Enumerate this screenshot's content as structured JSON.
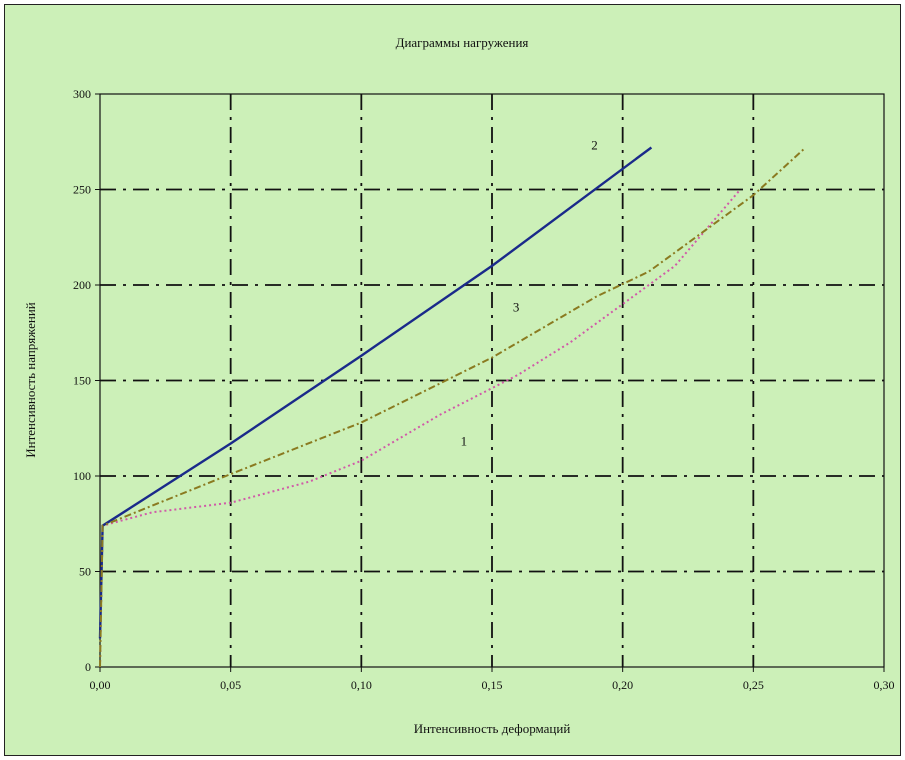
{
  "chart_data": {
    "type": "line",
    "title": "Диаграммы нагружения",
    "xlabel": "Интенсивность деформаций",
    "ylabel": "Интенсивность напряжений",
    "xlim": [
      0,
      0.3
    ],
    "ylim": [
      0,
      300
    ],
    "x_ticks": [
      0,
      0.05,
      0.1,
      0.15,
      0.2,
      0.25,
      0.3
    ],
    "x_tick_labels": [
      "0,00",
      "0,05",
      "0,10",
      "0,15",
      "0,20",
      "0,25",
      "0,30"
    ],
    "y_ticks": [
      0,
      50,
      100,
      150,
      200,
      250,
      300
    ],
    "y_tick_labels": [
      "0",
      "50",
      "100",
      "150",
      "200",
      "250",
      "300"
    ],
    "grid": true,
    "legend": "none",
    "background": "#ccf0b8",
    "series": [
      {
        "label": "1",
        "color": "#d05aa8",
        "style": "dotted",
        "points": [
          [
            0,
            0
          ],
          [
            0.001,
            74
          ],
          [
            0.02,
            81
          ],
          [
            0.05,
            86
          ],
          [
            0.08,
            97
          ],
          [
            0.1,
            108
          ],
          [
            0.13,
            132
          ],
          [
            0.16,
            153
          ],
          [
            0.18,
            170
          ],
          [
            0.2,
            190
          ],
          [
            0.22,
            210
          ],
          [
            0.245,
            250
          ]
        ]
      },
      {
        "label": "2",
        "color": "#1a2a8a",
        "style": "solid",
        "points": [
          [
            0,
            15
          ],
          [
            0.001,
            74
          ],
          [
            0.05,
            117
          ],
          [
            0.1,
            163
          ],
          [
            0.15,
            210
          ],
          [
            0.211,
            272
          ]
        ]
      },
      {
        "label": "3",
        "color": "#8a7a20",
        "style": "dashdot",
        "points": [
          [
            0,
            0
          ],
          [
            0.001,
            74
          ],
          [
            0.03,
            90
          ],
          [
            0.05,
            101
          ],
          [
            0.1,
            128
          ],
          [
            0.15,
            162
          ],
          [
            0.19,
            194
          ],
          [
            0.21,
            207
          ],
          [
            0.25,
            247
          ],
          [
            0.27,
            272
          ]
        ]
      }
    ],
    "annotations": [
      {
        "text": "2",
        "x": 0.188,
        "y": 271
      },
      {
        "text": "3",
        "x": 0.158,
        "y": 186
      },
      {
        "text": "1",
        "x": 0.138,
        "y": 116
      }
    ]
  }
}
